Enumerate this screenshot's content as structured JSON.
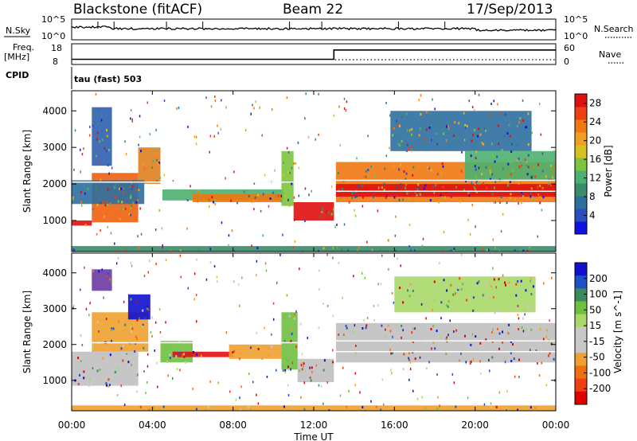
{
  "header": {
    "station": "Blackstone (fitACF)",
    "beam": "Beam 22",
    "date": "17/Sep/2013"
  },
  "top_panels": {
    "nsky_label": "N.Sky",
    "nsky_ticks": [
      "10^5",
      "10^0"
    ],
    "nsearch_label": "N.Search",
    "nsearch_ticks": [
      "10^5",
      "10^0"
    ],
    "freq_label": "Freq.",
    "freq_unit": "[MHz]",
    "freq_ticks": [
      "18",
      "8"
    ],
    "nave_label": "Nave",
    "nave_ticks": [
      "60",
      "0"
    ],
    "cpid_label": "CPID",
    "cpid_text": "tau (fast) 503"
  },
  "colors": {
    "power_scale": [
      "#1010e0",
      "#2a4fc0",
      "#2e6fa0",
      "#3a8c6a",
      "#4cb070",
      "#7cc43c",
      "#d8c020",
      "#f0a020",
      "#f07810",
      "#f04010",
      "#e01010"
    ],
    "velocity_scale": [
      "#1010d0",
      "#2050c8",
      "#3a8a60",
      "#70c040",
      "#a8d868",
      "#c8c8c8",
      "#c8c8c8",
      "#f0a030",
      "#f07010",
      "#f04010",
      "#e00000"
    ],
    "ground_scatter": "#c0c0c0"
  },
  "chart_data": [
    {
      "type": "line",
      "panel": "N.Sky / N.Search",
      "x": [
        "00:00",
        "04:00",
        "08:00",
        "12:00",
        "16:00",
        "20:00",
        "00:00"
      ],
      "ylim": [
        "10^0",
        "10^5"
      ]
    },
    {
      "type": "line",
      "panel": "Freq. / Nave",
      "series": [
        {
          "name": "Freq.",
          "x_hours": [
            0,
            13,
            13,
            24
          ],
          "values": [
            10.5,
            10.5,
            15.0,
            15.0
          ]
        }
      ],
      "freq_range_mhz": [
        8,
        18
      ],
      "nave_range": [
        0,
        60
      ]
    },
    {
      "type": "heatmap",
      "panel": "Power",
      "ylabel": "Slant Range [km]",
      "yticks": [
        1000,
        2000,
        3000,
        4000
      ],
      "ylim": [
        150,
        4550
      ],
      "xlim_hours": [
        0,
        24
      ],
      "colorbar_title": "Power [dB]",
      "colorbar_ticks": [
        4,
        8,
        12,
        16,
        20,
        24,
        28
      ],
      "colorbar_range": [
        0,
        30
      ],
      "bands": [
        {
          "h0": 0.0,
          "h1": 1.0,
          "r0": 860,
          "r1": 1000,
          "color": "#e01010"
        },
        {
          "h0": 1.0,
          "h1": 3.3,
          "r0": 950,
          "r1": 2300,
          "color": "#f06010"
        },
        {
          "h0": 3.3,
          "h1": 4.4,
          "r0": 2000,
          "r1": 3000,
          "color": "#e08020"
        },
        {
          "h0": 0.0,
          "h1": 3.6,
          "r0": 1450,
          "r1": 2100,
          "color": "#2e6fa0"
        },
        {
          "h0": 1.0,
          "h1": 2.0,
          "r0": 2500,
          "r1": 4100,
          "color": "#2e5fb0"
        },
        {
          "h0": 4.5,
          "h1": 10.5,
          "r0": 1550,
          "r1": 1850,
          "color": "#4cb070"
        },
        {
          "h0": 6.0,
          "h1": 10.4,
          "r0": 1500,
          "r1": 1720,
          "color": "#f07810"
        },
        {
          "h0": 10.4,
          "h1": 11.0,
          "r0": 1400,
          "r1": 2900,
          "color": "#7cc43c"
        },
        {
          "h0": 11.0,
          "h1": 13.0,
          "r0": 1000,
          "r1": 1500,
          "color": "#e01010"
        },
        {
          "h0": 13.1,
          "h1": 24.0,
          "r0": 1500,
          "r1": 2600,
          "color": "#f07810"
        },
        {
          "h0": 13.1,
          "h1": 24.0,
          "r0": 1650,
          "r1": 2000,
          "color": "#e01010"
        },
        {
          "h0": 19.5,
          "h1": 24.0,
          "r0": 2100,
          "r1": 2900,
          "color": "#4cb070"
        },
        {
          "h0": 15.8,
          "h1": 22.8,
          "r0": 2900,
          "r1": 4000,
          "color": "#2e6fa0"
        },
        {
          "h0": 0.0,
          "h1": 24.0,
          "r0": 150,
          "r1": 300,
          "color": "#3a8c6a"
        }
      ]
    },
    {
      "type": "heatmap",
      "panel": "Velocity",
      "ylabel": "Slant Range [km]",
      "yticks": [
        1000,
        2000,
        3000,
        4000
      ],
      "ylim": [
        150,
        4550
      ],
      "xlim_hours": [
        0,
        24
      ],
      "colorbar_title": "Velocity [m s^-1]",
      "colorbar_ticks": [
        200,
        100,
        50,
        15,
        -15,
        -50,
        -100,
        -200
      ],
      "bands": [
        {
          "h0": 0.0,
          "h1": 3.3,
          "r0": 850,
          "r1": 1800,
          "color": "#c0c0c0"
        },
        {
          "h0": 1.0,
          "h1": 3.8,
          "r0": 1800,
          "r1": 2900,
          "color": "#f0a030"
        },
        {
          "h0": 2.8,
          "h1": 3.9,
          "r0": 2700,
          "r1": 3400,
          "color": "#1010d0"
        },
        {
          "h0": 1.0,
          "h1": 2.0,
          "r0": 3500,
          "r1": 4100,
          "color": "#6a3aa0"
        },
        {
          "h0": 4.4,
          "h1": 6.0,
          "r0": 1500,
          "r1": 2100,
          "color": "#70c040"
        },
        {
          "h0": 5.0,
          "h1": 8.0,
          "r0": 1650,
          "r1": 1800,
          "color": "#e01010"
        },
        {
          "h0": 7.8,
          "h1": 10.4,
          "r0": 1600,
          "r1": 2000,
          "color": "#f0a030"
        },
        {
          "h0": 10.4,
          "h1": 11.2,
          "r0": 1300,
          "r1": 2900,
          "color": "#70c040"
        },
        {
          "h0": 11.2,
          "h1": 13.0,
          "r0": 950,
          "r1": 1600,
          "color": "#c0c0c0"
        },
        {
          "h0": 13.1,
          "h1": 24.0,
          "r0": 1500,
          "r1": 2600,
          "color": "#c0c0c0"
        },
        {
          "h0": 16.0,
          "h1": 23.0,
          "r0": 2900,
          "r1": 3900,
          "color": "#a8d868"
        },
        {
          "h0": 0.0,
          "h1": 24.0,
          "r0": 150,
          "r1": 300,
          "color": "#f0a030"
        }
      ]
    }
  ],
  "xaxis": {
    "title": "Time UT",
    "ticks": [
      "00:00",
      "04:00",
      "08:00",
      "12:00",
      "16:00",
      "20:00",
      "00:00"
    ]
  }
}
